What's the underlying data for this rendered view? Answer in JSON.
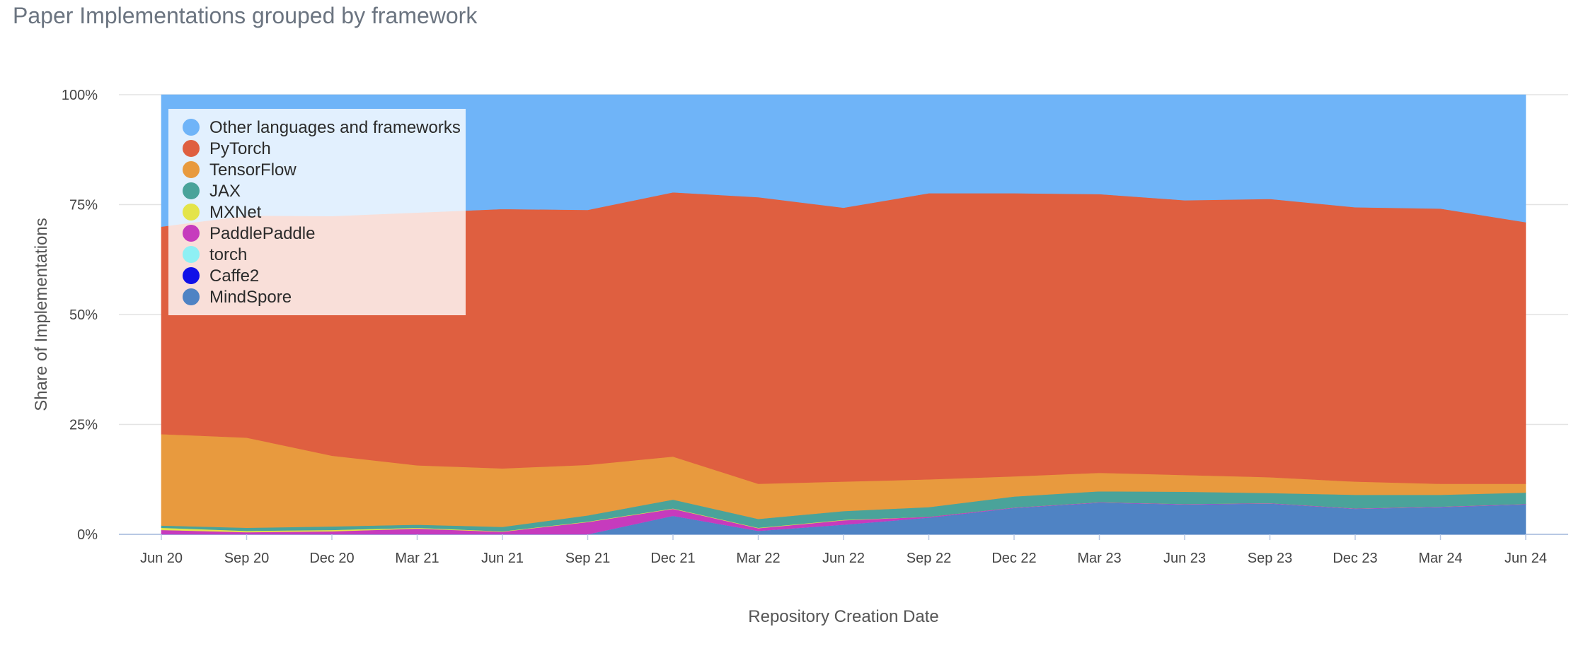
{
  "chart_title": "Paper Implementations grouped by framework",
  "chart_data": {
    "type": "area",
    "stacked": true,
    "normalized": true,
    "title": "Paper Implementations grouped by framework",
    "xlabel": "Repository Creation Date",
    "ylabel": "Share of Implementations",
    "ylim": [
      0,
      100
    ],
    "y_ticks": [
      "0%",
      "25%",
      "50%",
      "75%",
      "100%"
    ],
    "x": [
      "Jun 20",
      "Sep 20",
      "Dec 20",
      "Mar 21",
      "Jun 21",
      "Sep 21",
      "Dec 21",
      "Mar 22",
      "Jun 22",
      "Sep 22",
      "Dec 22",
      "Mar 23",
      "Jun 23",
      "Sep 23",
      "Dec 23",
      "Mar 24",
      "Jun 24"
    ],
    "grid": "horizontal",
    "legend_position": "top-left",
    "series": [
      {
        "name": "MindSpore",
        "color": "#4f83c4",
        "values": [
          0,
          0,
          0,
          0,
          0,
          0,
          4.2,
          0.8,
          2.2,
          3.8,
          6.0,
          7.2,
          6.8,
          7.0,
          5.8,
          6.2,
          6.8
        ]
      },
      {
        "name": "Caffe2",
        "color": "#1010e8",
        "values": [
          0,
          0,
          0,
          0,
          0,
          0,
          0,
          0,
          0,
          0,
          0,
          0,
          0,
          0,
          0,
          0,
          0
        ]
      },
      {
        "name": "torch",
        "color": "#8ef0f4",
        "values": [
          0,
          0,
          0,
          0,
          0,
          0,
          0,
          0,
          0,
          0,
          0,
          0,
          0,
          0,
          0,
          0,
          0
        ]
      },
      {
        "name": "PaddlePaddle",
        "color": "#c63bbd",
        "values": [
          1.0,
          0.5,
          0.7,
          1.3,
          0.6,
          2.8,
          1.6,
          0.6,
          1.0,
          0.2,
          0.1,
          0.1,
          0.1,
          0.1,
          0.1,
          0.1,
          0.1
        ]
      },
      {
        "name": "MXNet",
        "color": "#e4e44a",
        "values": [
          0.5,
          0.3,
          0.3,
          0.2,
          0.1,
          0.1,
          0.1,
          0.1,
          0.1,
          0.0,
          0.0,
          0.0,
          0.0,
          0.0,
          0.0,
          0.0,
          0.0
        ]
      },
      {
        "name": "JAX",
        "color": "#4aa39a",
        "values": [
          0.5,
          0.7,
          0.8,
          0.7,
          1.0,
          1.4,
          2.0,
          2.0,
          2.0,
          2.2,
          2.5,
          2.5,
          2.8,
          2.3,
          3.1,
          2.7,
          2.6
        ]
      },
      {
        "name": "TensorFlow",
        "color": "#e89a3e",
        "values": [
          20.8,
          20.5,
          16.1,
          13.5,
          13.3,
          11.5,
          9.8,
          8.0,
          6.7,
          6.3,
          4.6,
          4.2,
          3.8,
          3.6,
          3.0,
          2.5,
          2.0
        ]
      },
      {
        "name": "PyTorch",
        "color": "#df5f40",
        "values": [
          47.2,
          50.5,
          54.5,
          57.5,
          59.0,
          58.0,
          60.1,
          65.2,
          62.3,
          65.1,
          64.4,
          63.4,
          62.5,
          63.3,
          62.4,
          62.6,
          59.5
        ]
      },
      {
        "name": "Other languages and frameworks",
        "color": "#6fb4f8",
        "values": [
          30.0,
          27.5,
          27.6,
          26.8,
          26.0,
          26.2,
          22.2,
          23.3,
          25.7,
          22.4,
          22.4,
          22.6,
          24.0,
          23.7,
          25.6,
          25.9,
          29.0
        ]
      }
    ],
    "legend": [
      "Other languages and frameworks",
      "PyTorch",
      "TensorFlow",
      "JAX",
      "MXNet",
      "PaddlePaddle",
      "torch",
      "Caffe2",
      "MindSpore"
    ]
  }
}
